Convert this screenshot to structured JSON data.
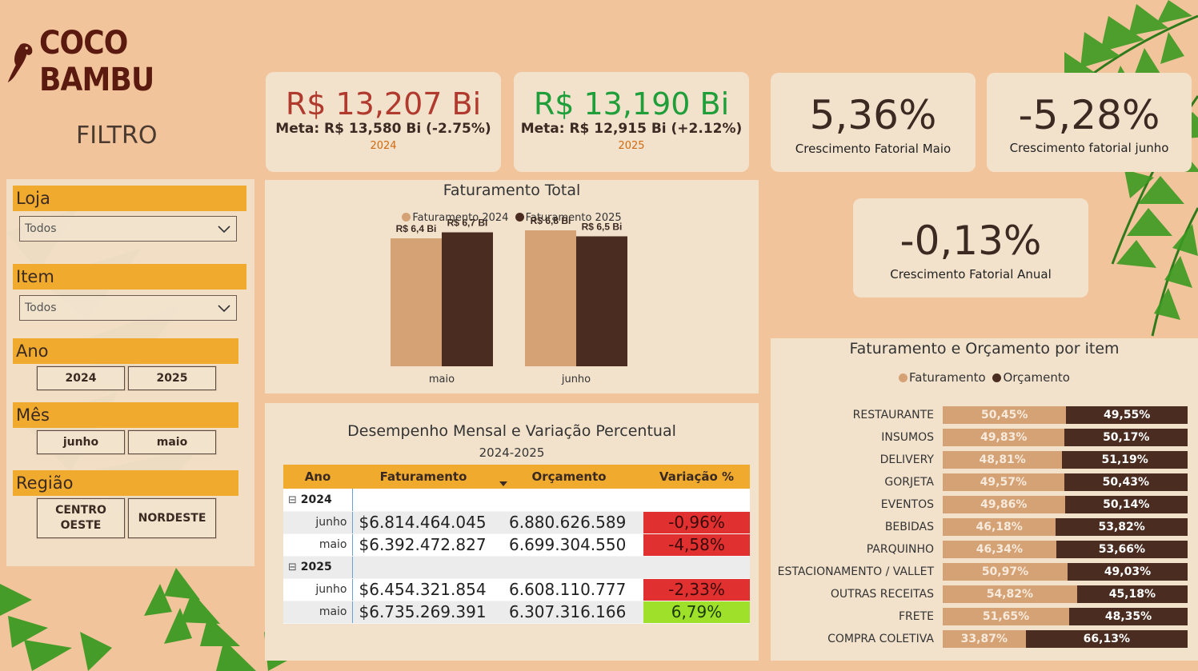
{
  "brand": {
    "name": "COCO BAMBU"
  },
  "colors": {
    "background": "#f2c49c",
    "accent": "#f0aa2e",
    "series_2024": "#d4a274",
    "series_2025": "#4a2c20",
    "negative": "#e03030",
    "positive": "#9ee02a",
    "kpi_red": "#b03a2e",
    "kpi_green": "#1f9e3a"
  },
  "filters": {
    "title": "FILTRO",
    "loja": {
      "label": "Loja",
      "selected": "Todos"
    },
    "item": {
      "label": "Item",
      "selected": "Todos"
    },
    "ano": {
      "label": "Ano",
      "options": [
        "2024",
        "2025"
      ]
    },
    "mes": {
      "label": "Mês",
      "options": [
        "junho",
        "maio"
      ]
    },
    "regiao": {
      "label": "Região",
      "options": [
        "CENTRO OESTE",
        "NORDESTE"
      ]
    }
  },
  "kpis": [
    {
      "value": "R$ 13,207 Bi",
      "meta": "Meta: R$ 13,580 Bi (-2.75%)",
      "year": "2024"
    },
    {
      "value": "R$ 13,190 Bi",
      "meta": "Meta: R$ 12,915 Bi (+2.12%)",
      "year": "2025"
    }
  ],
  "growth": [
    {
      "value": "5,36%",
      "label": "Crescimento Fatorial Maio"
    },
    {
      "value": "-5,28%",
      "label": "Crescimento fatorial junho"
    },
    {
      "value": "-0,13%",
      "label": "Crescimento Fatorial Anual"
    }
  ],
  "chart_data": [
    {
      "type": "bar",
      "title": "Faturamento Total",
      "categories": [
        "maio",
        "junho"
      ],
      "series": [
        {
          "name": "Faturamento 2024",
          "values": [
            6.4,
            6.8
          ],
          "labels": [
            "R$ 6,4 Bi",
            "R$ 6,8 Bi"
          ]
        },
        {
          "name": "Faturamento 2025",
          "values": [
            6.7,
            6.5
          ],
          "labels": [
            "R$ 6,7 Bi",
            "R$ 6,5 Bi"
          ]
        }
      ],
      "ylim": [
        0,
        7.0
      ],
      "legend": "top-center"
    },
    {
      "type": "bar",
      "orientation": "horizontal-stacked-100",
      "title": "Faturamento e Orçamento por item",
      "categories": [
        "RESTAURANTE",
        "INSUMOS",
        "DELIVERY",
        "GORJETA",
        "EVENTOS",
        "BEBIDAS",
        "PARQUINHO",
        "ESTACIONAMENTO / VALLET",
        "OUTRAS RECEITAS",
        "FRETE",
        "COMPRA COLETIVA"
      ],
      "series": [
        {
          "name": "Faturamento",
          "values": [
            50.45,
            49.83,
            48.81,
            49.57,
            49.86,
            46.18,
            46.34,
            50.97,
            54.82,
            51.65,
            33.87
          ],
          "labels": [
            "50,45%",
            "49,83%",
            "48,81%",
            "49,57%",
            "49,86%",
            "46,18%",
            "46,34%",
            "50,97%",
            "54,82%",
            "51,65%",
            "33,87%"
          ]
        },
        {
          "name": "Orçamento",
          "values": [
            49.55,
            50.17,
            51.19,
            50.43,
            50.14,
            53.82,
            53.66,
            49.03,
            45.18,
            48.35,
            66.13
          ],
          "labels": [
            "49,55%",
            "50,17%",
            "51,19%",
            "50,43%",
            "50,14%",
            "53,82%",
            "53,66%",
            "49,03%",
            "45,18%",
            "48,35%",
            "66,13%"
          ]
        }
      ],
      "legend": "top-center"
    }
  ],
  "table": {
    "title": "Desempenho Mensal e Variação Percentual",
    "subtitle": "2024-2025",
    "columns": [
      "Ano",
      "Faturamento",
      "Orçamento",
      "Variação %"
    ],
    "groups": [
      {
        "year": "2024",
        "rows": [
          {
            "month": "junho",
            "faturamento": "$6.814.464.045",
            "orcamento": "6.880.626.589",
            "variacao": "-0,96%"
          },
          {
            "month": "maio",
            "faturamento": "$6.392.472.827",
            "orcamento": "6.699.304.550",
            "variacao": "-4,58%"
          }
        ]
      },
      {
        "year": "2025",
        "rows": [
          {
            "month": "junho",
            "faturamento": "$6.454.321.854",
            "orcamento": "6.608.110.777",
            "variacao": "-2,33%"
          },
          {
            "month": "maio",
            "faturamento": "$6.735.269.391",
            "orcamento": "6.307.316.166",
            "variacao": "6,79%"
          }
        ]
      }
    ],
    "expand_symbol": "⊟"
  }
}
